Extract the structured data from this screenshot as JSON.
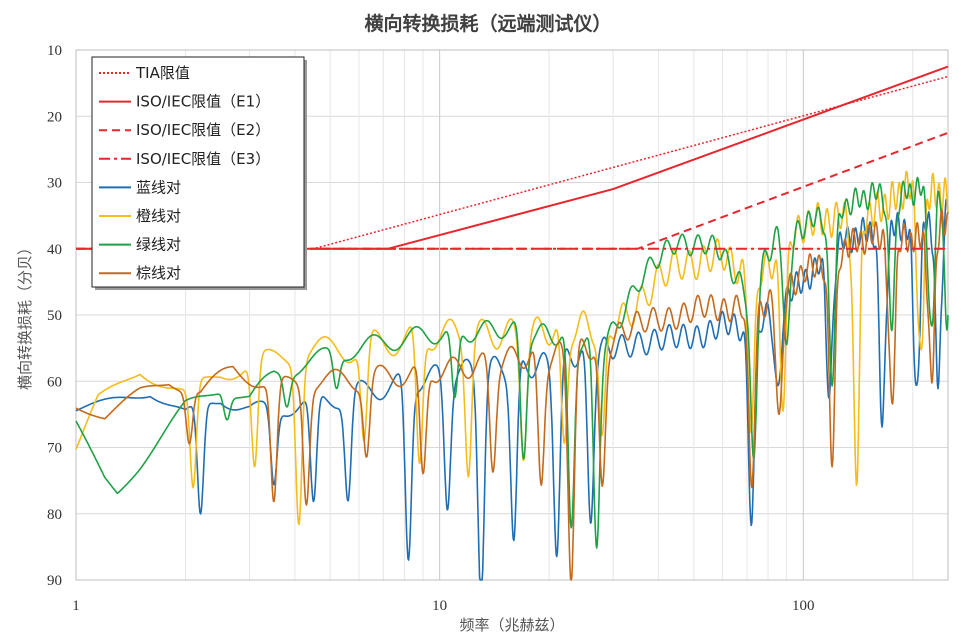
{
  "chart_data": {
    "type": "line",
    "title": "横向转换损耗（远端测试仪）",
    "xlabel": "频率（兆赫兹）",
    "ylabel": "横向转换损耗（分贝）",
    "xscale": "log",
    "xlim": [
      1,
      250
    ],
    "ylim": [
      10,
      90
    ],
    "y_inverted": true,
    "xticks": [
      1,
      10,
      100
    ],
    "xtick_labels": [
      "1",
      "10",
      "100"
    ],
    "yticks": [
      10,
      20,
      30,
      40,
      50,
      60,
      70,
      80,
      90
    ],
    "ytick_labels": [
      "10",
      "20",
      "30",
      "40",
      "50",
      "60",
      "70",
      "80",
      "90"
    ],
    "grid": {
      "horizontal": true,
      "vertical": true,
      "minor_x": true
    },
    "legend": {
      "position": "top-left",
      "entries": [
        "TIA限值",
        "ISO/IEC限值（E1）",
        "ISO/IEC限值（E2）",
        "ISO/IEC限值（E3）",
        "蓝线对",
        "橙线对",
        "绿线对",
        "棕线对"
      ]
    },
    "limit_lines": [
      {
        "name": "TIA限值",
        "color": "#e8262d",
        "style": "dotted",
        "points": [
          [
            1,
            40
          ],
          [
            4.5,
            40
          ],
          [
            250,
            14
          ]
        ]
      },
      {
        "name": "ISO/IEC限值（E1）",
        "color": "#e8262d",
        "style": "solid",
        "points": [
          [
            1,
            40
          ],
          [
            7.2,
            40
          ],
          [
            30,
            31
          ],
          [
            250,
            12.5
          ]
        ]
      },
      {
        "name": "ISO/IEC限值（E2）",
        "color": "#e8262d",
        "style": "dashed",
        "points": [
          [
            1,
            40
          ],
          [
            35,
            40
          ],
          [
            250,
            22.5
          ]
        ]
      },
      {
        "name": "ISO/IEC限值（E3）",
        "color": "#e8262d",
        "style": "dashdot",
        "points": [
          [
            1,
            40
          ],
          [
            250,
            40
          ]
        ]
      }
    ],
    "series": [
      {
        "name": "蓝线对",
        "color": "#1f6eb4",
        "env": [
          [
            1,
            64
          ],
          [
            1.6,
            60.5
          ],
          [
            2,
            64
          ],
          [
            2.5,
            61
          ],
          [
            3,
            63
          ],
          [
            4,
            62
          ],
          [
            6,
            60
          ],
          [
            10,
            58
          ],
          [
            15,
            56
          ],
          [
            20,
            55
          ],
          [
            28,
            54
          ],
          [
            35,
            52
          ],
          [
            45,
            52
          ],
          [
            60,
            50
          ],
          [
            75,
            50
          ],
          [
            100,
            43
          ],
          [
            130,
            37
          ],
          [
            160,
            35
          ],
          [
            200,
            35
          ],
          [
            250,
            32
          ]
        ],
        "dips": [
          [
            2.2,
            79.5
          ],
          [
            3.5,
            74
          ],
          [
            4.5,
            78
          ],
          [
            5.6,
            76
          ],
          [
            8.2,
            86
          ],
          [
            10.5,
            77
          ],
          [
            13,
            90
          ],
          [
            16,
            82
          ],
          [
            21,
            83
          ],
          [
            26,
            80
          ],
          [
            72,
            78
          ],
          [
            85,
            60
          ],
          [
            118,
            60
          ],
          [
            165,
            65
          ],
          [
            205,
            60
          ],
          [
            235,
            58
          ]
        ],
        "osc": 3.5,
        "period": 2.5,
        "seed": 1
      },
      {
        "name": "橙线对",
        "color": "#f5bd19",
        "env": [
          [
            1,
            70
          ],
          [
            1.15,
            62
          ],
          [
            1.5,
            57
          ],
          [
            2,
            61
          ],
          [
            2.5,
            57
          ],
          [
            3.5,
            55
          ],
          [
            4,
            54
          ],
          [
            6,
            53
          ],
          [
            10,
            51
          ],
          [
            15,
            50
          ],
          [
            20,
            50
          ],
          [
            28,
            50
          ],
          [
            35,
            46
          ],
          [
            45,
            40
          ],
          [
            60,
            39
          ],
          [
            75,
            42
          ],
          [
            100,
            34
          ],
          [
            130,
            33
          ],
          [
            160,
            32
          ],
          [
            200,
            28
          ],
          [
            250,
            30
          ]
        ],
        "dips": [
          [
            2.1,
            76
          ],
          [
            3.1,
            72
          ],
          [
            4.1,
            78
          ],
          [
            6.2,
            68
          ],
          [
            8.8,
            72
          ],
          [
            12,
            70
          ],
          [
            17,
            67
          ],
          [
            22,
            69
          ],
          [
            28,
            68
          ],
          [
            72,
            65
          ],
          [
            88,
            60
          ],
          [
            140,
            72
          ],
          [
            210,
            55
          ]
        ],
        "osc": 4.5,
        "period": 2.3,
        "seed": 2
      },
      {
        "name": "绿线对",
        "color": "#1fa146",
        "env": [
          [
            1,
            66
          ],
          [
            1.2,
            74
          ],
          [
            1.3,
            76
          ],
          [
            1.5,
            72
          ],
          [
            2,
            63
          ],
          [
            2.5,
            60
          ],
          [
            3,
            62
          ],
          [
            3.5,
            58
          ],
          [
            4,
            57
          ],
          [
            5,
            55
          ],
          [
            7,
            53
          ],
          [
            10,
            51
          ],
          [
            15,
            50
          ],
          [
            20,
            52
          ],
          [
            28,
            53
          ],
          [
            35,
            44
          ],
          [
            45,
            37
          ],
          [
            60,
            39
          ],
          [
            70,
            45
          ],
          [
            85,
            36
          ],
          [
            100,
            35
          ],
          [
            130,
            32
          ],
          [
            160,
            30
          ],
          [
            200,
            30
          ],
          [
            250,
            27
          ]
        ],
        "dips": [
          [
            2.6,
            64
          ],
          [
            3.8,
            62
          ],
          [
            5.2,
            60
          ],
          [
            11,
            62
          ],
          [
            17,
            70
          ],
          [
            23,
            82
          ],
          [
            27,
            83
          ],
          [
            73,
            72
          ],
          [
            90,
            55
          ],
          [
            120,
            58
          ],
          [
            175,
            50
          ],
          [
            225,
            52
          ],
          [
            248,
            49
          ]
        ],
        "osc": 3.0,
        "period": 2.2,
        "seed": 3
      },
      {
        "name": "棕线对",
        "color": "#c46a1e",
        "env": [
          [
            1,
            63
          ],
          [
            1.2,
            65
          ],
          [
            1.5,
            61
          ],
          [
            1.8,
            59
          ],
          [
            2.2,
            61
          ],
          [
            2.7,
            57
          ],
          [
            3.5,
            60
          ],
          [
            4,
            59
          ],
          [
            6,
            58
          ],
          [
            10,
            56
          ],
          [
            15,
            55
          ],
          [
            20,
            55
          ],
          [
            28,
            52
          ],
          [
            35,
            50
          ],
          [
            45,
            48
          ],
          [
            60,
            47
          ],
          [
            75,
            47
          ],
          [
            100,
            42
          ],
          [
            130,
            38
          ],
          [
            160,
            36
          ],
          [
            200,
            37
          ],
          [
            250,
            34
          ]
        ],
        "dips": [
          [
            2.05,
            68
          ],
          [
            3.5,
            78
          ],
          [
            4.3,
            76
          ],
          [
            6.3,
            69
          ],
          [
            9,
            73
          ],
          [
            14,
            71
          ],
          [
            19,
            75
          ],
          [
            23,
            87
          ],
          [
            28,
            75
          ],
          [
            72,
            74
          ],
          [
            86,
            65
          ],
          [
            120,
            70
          ],
          [
            175,
            62
          ],
          [
            225,
            58
          ]
        ],
        "osc": 3.5,
        "period": 2.4,
        "seed": 4
      }
    ]
  }
}
